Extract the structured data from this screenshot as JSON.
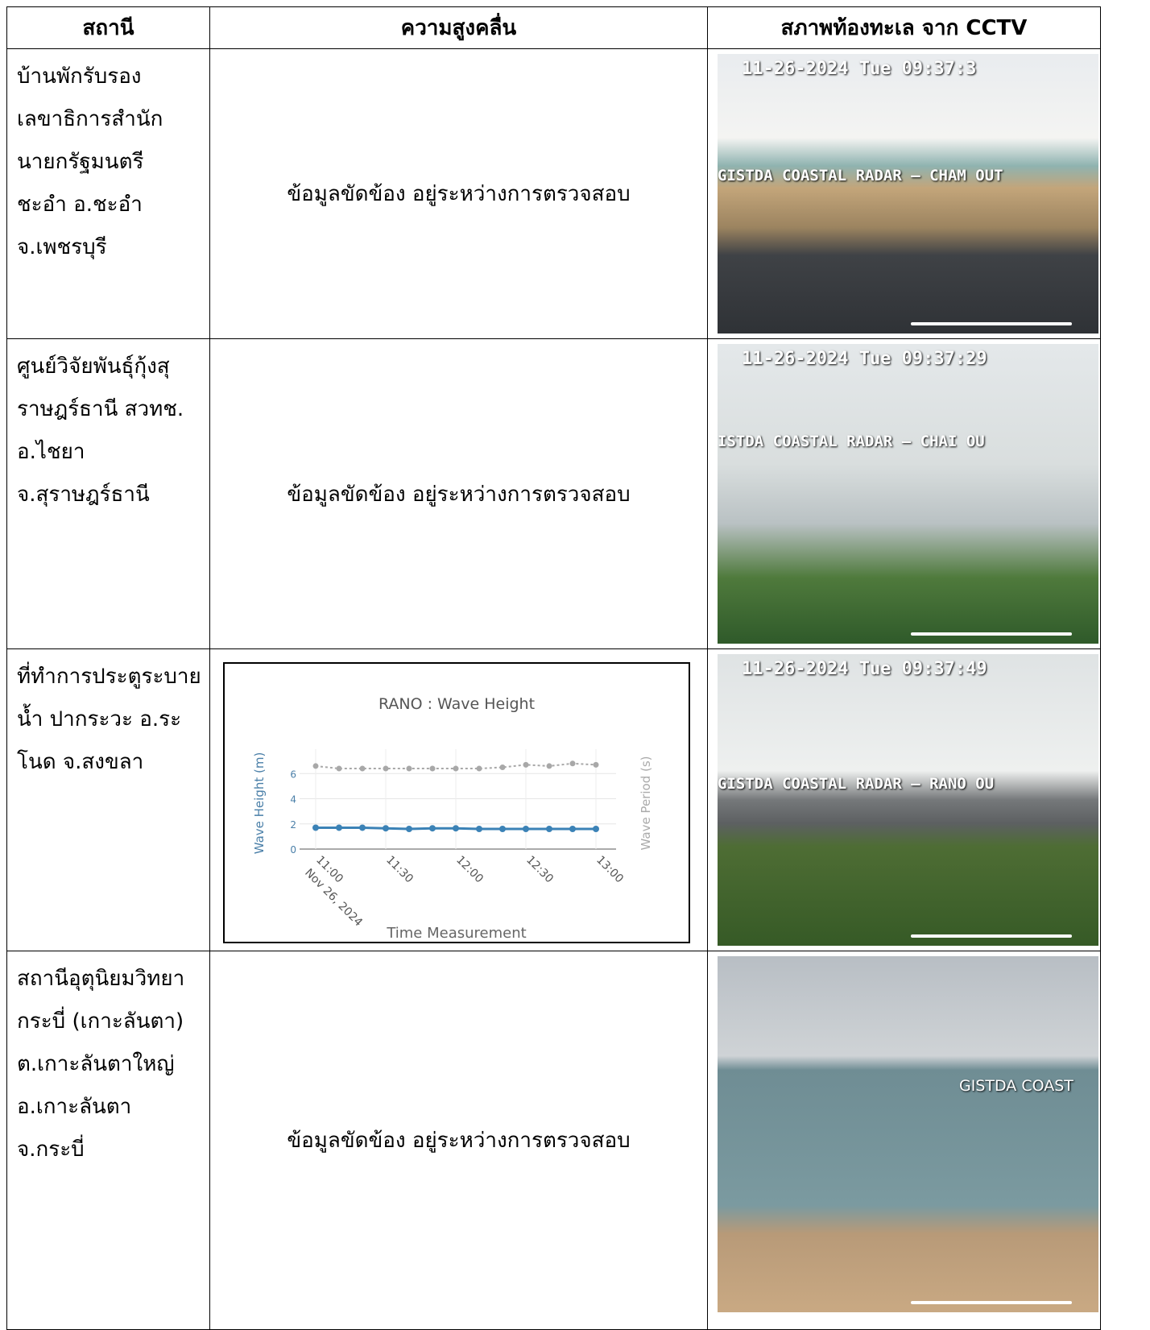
{
  "header": [
    "สถานี",
    "ความสูงคลื่น",
    "สภาพท้องทะเล จาก CCTV"
  ],
  "rows": [
    {
      "station": [
        "บ้านพักรับรอง",
        "เลขาธิการสำนัก",
        "นายกรัฐมนตรี",
        "ชะอำ อ.ชะอำ",
        "จ.เพชรบุรี"
      ],
      "wave": "ข้อมูลขัดข้อง อยู่ระหว่างการตรวจสอบ",
      "cctv": {
        "timestamp": "11-26-2024 Tue 09:37:3",
        "overlay": "GISTDA COASTAL RADAR – CHAM OUT"
      }
    },
    {
      "station": [
        "ศูนย์วิจัยพันธุ์กุ้งสุ",
        "ราษฎร์ธานี สวทช.",
        "อ.ไชยา",
        "จ.สุราษฎร์ธานี"
      ],
      "wave": "ข้อมูลขัดข้อง อยู่ระหว่างการตรวจสอบ",
      "cctv": {
        "timestamp": "11-26-2024 Tue 09:37:29",
        "overlay": "ISTDA COASTAL RADAR – CHAI OU"
      }
    },
    {
      "station": [
        "ที่ทำการประตูระบาย",
        "น้ำ ปากระวะ อ.ระ",
        "โนด จ.สงขลา"
      ],
      "cctv": {
        "timestamp": "11-26-2024 Tue 09:37:49",
        "overlay": "GISTDA COASTAL RADAR – RANO OU"
      }
    },
    {
      "station": [
        "สถานีอุตุนิยมวิทยา",
        "กระบี่ (เกาะลันตา)",
        "ต.เกาะลันตาใหญ่",
        "อ.เกาะลันตา",
        "จ.กระบี่"
      ],
      "wave": "ข้อมูลขัดข้อง อยู่ระหว่างการตรวจสอบ",
      "cctv": {
        "overlay": "GISTDA COAST"
      }
    }
  ],
  "chart_data": {
    "type": "line",
    "title": "RANO : Wave Height",
    "x_label": "Time Measurement",
    "y_label": "Wave Height (m)",
    "y2_label": "Wave Period (s)",
    "date_label": "Nov 26, 2024",
    "x": [
      "2024-11-26T11:00",
      "2024-11-26T11:10",
      "2024-11-26T11:20",
      "2024-11-26T11:30",
      "2024-11-26T11:40",
      "2024-11-26T11:50",
      "2024-11-26T12:00",
      "2024-11-26T12:10",
      "2024-11-26T12:20",
      "2024-11-26T12:30",
      "2024-11-26T12:40",
      "2024-11-26T12:50",
      "2024-11-26T13:00"
    ],
    "xlim": [
      "2024-11-26T11:00",
      "2024-11-26T13:00"
    ],
    "xticks": [
      {
        "value": "2024-11-26T11:00",
        "label": "11:00"
      },
      {
        "value": "2024-11-26T11:30",
        "label": "11:30"
      },
      {
        "value": "2024-11-26T12:00",
        "label": "12:00"
      },
      {
        "value": "2024-11-26T12:30",
        "label": "12:30"
      },
      {
        "value": "2024-11-26T13:00",
        "label": "13:00"
      }
    ],
    "ylim": [
      0,
      7.3
    ],
    "yticks": [
      0,
      2,
      4,
      6
    ],
    "y2lim": [
      0,
      7.3
    ],
    "grid": true,
    "series": [
      {
        "name": "Wave Height",
        "color": "#3b82b6",
        "values": [
          1.7,
          1.7,
          1.7,
          1.65,
          1.6,
          1.65,
          1.65,
          1.6,
          1.6,
          1.6,
          1.6,
          1.6,
          1.6
        ]
      },
      {
        "name": "Wave Period",
        "color": "#a8a8a8",
        "axis": "y2",
        "values": [
          6.6,
          6.4,
          6.4,
          6.4,
          6.4,
          6.4,
          6.4,
          6.4,
          6.5,
          6.7,
          6.6,
          6.8,
          6.7
        ]
      }
    ]
  }
}
